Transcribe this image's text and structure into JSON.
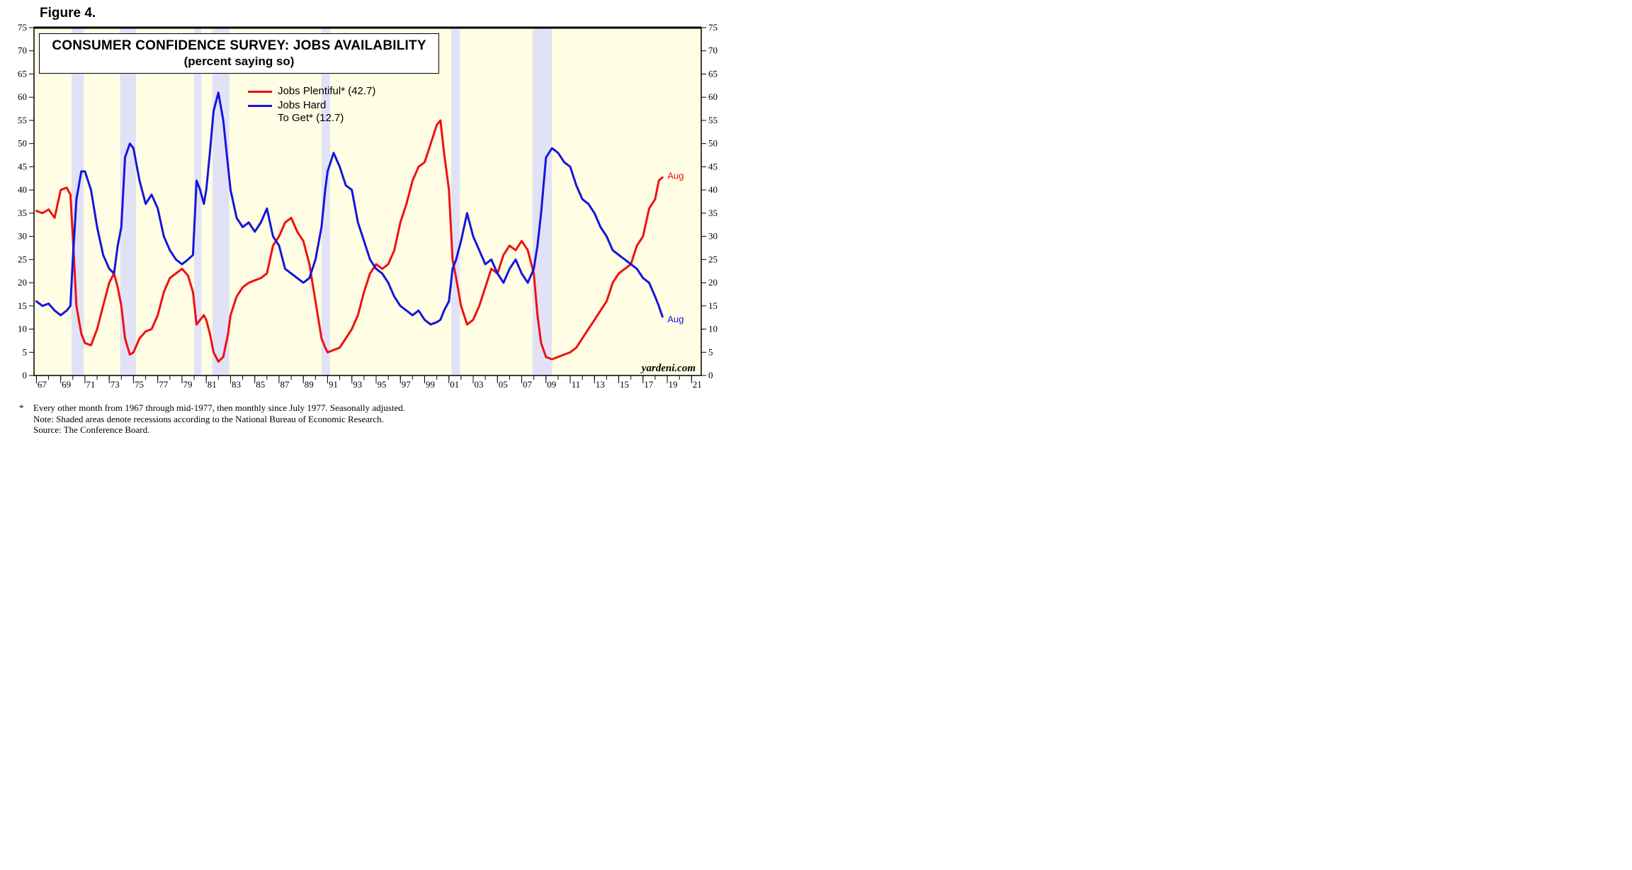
{
  "figure_label": "Figure 4.",
  "colors": {
    "plot_background": "#fffde3",
    "recession_shade": "#e2e2f7",
    "plentiful": "#ee1111",
    "hard_to_get": "#1515dd"
  },
  "footnotes": {
    "mark": "*",
    "line1": "Every other month from 1967 through mid-1977, then monthly since July 1977. Seasonally adjusted.",
    "line2": "Note: Shaded areas denote recessions according to the National Bureau of Economic Research.",
    "line3": "Source: The Conference Board."
  },
  "chart_data": {
    "type": "line",
    "title": "CONSUMER CONFIDENCE SURVEY: JOBS AVAILABILITY",
    "subtitle": "(percent saying so)",
    "credit": "yardeni.com",
    "xlim": [
      1966.8,
      2021.8
    ],
    "ylim": [
      0,
      75
    ],
    "y_ticks": [
      0,
      5,
      10,
      15,
      20,
      25,
      30,
      35,
      40,
      45,
      50,
      55,
      60,
      65,
      70,
      75
    ],
    "x_tick_labels": [
      "67",
      "69",
      "71",
      "73",
      "75",
      "77",
      "79",
      "81",
      "83",
      "85",
      "87",
      "89",
      "91",
      "93",
      "95",
      "97",
      "99",
      "01",
      "03",
      "05",
      "07",
      "09",
      "11",
      "13",
      "15",
      "17",
      "19",
      "21"
    ],
    "x_tick_years": [
      1967,
      1969,
      1971,
      1973,
      1975,
      1977,
      1979,
      1981,
      1983,
      1985,
      1987,
      1989,
      1991,
      1993,
      1995,
      1997,
      1999,
      2001,
      2003,
      2005,
      2007,
      2009,
      2011,
      2013,
      2015,
      2017,
      2019,
      2021
    ],
    "recessions": [
      [
        1969.9,
        1970.9
      ],
      [
        1973.9,
        1975.2
      ],
      [
        1980.0,
        1980.6
      ],
      [
        1981.5,
        1982.9
      ],
      [
        1990.5,
        1991.2
      ],
      [
        2001.2,
        2001.9
      ],
      [
        2007.9,
        2009.5
      ]
    ],
    "legend": [
      {
        "name": "Jobs Plentiful* (42.7)",
        "series": 0
      },
      {
        "name": "Jobs Hard\nTo Get* (12.7)",
        "series": 1
      }
    ],
    "series": [
      {
        "name": "Jobs Plentiful* (42.7)",
        "end_label": "Aug",
        "x": [
          1967.0,
          1967.5,
          1968.0,
          1968.5,
          1969.0,
          1969.5,
          1969.8,
          1970.0,
          1970.3,
          1970.7,
          1971.0,
          1971.5,
          1972.0,
          1972.5,
          1973.0,
          1973.4,
          1973.7,
          1974.0,
          1974.3,
          1974.7,
          1975.0,
          1975.5,
          1976.0,
          1976.5,
          1977.0,
          1977.5,
          1978.0,
          1978.5,
          1979.0,
          1979.5,
          1979.9,
          1980.2,
          1980.5,
          1980.8,
          1981.0,
          1981.3,
          1981.6,
          1982.0,
          1982.4,
          1982.8,
          1983.0,
          1983.5,
          1984.0,
          1984.5,
          1985.0,
          1985.5,
          1986.0,
          1986.5,
          1987.0,
          1987.5,
          1988.0,
          1988.5,
          1989.0,
          1989.5,
          1990.0,
          1990.5,
          1990.8,
          1991.0,
          1991.5,
          1992.0,
          1992.5,
          1993.0,
          1993.5,
          1994.0,
          1994.5,
          1995.0,
          1995.5,
          1996.0,
          1996.5,
          1997.0,
          1997.5,
          1998.0,
          1998.5,
          1999.0,
          1999.5,
          2000.0,
          2000.3,
          2000.6,
          2001.0,
          2001.3,
          2001.6,
          2002.0,
          2002.5,
          2003.0,
          2003.5,
          2004.0,
          2004.5,
          2005.0,
          2005.5,
          2006.0,
          2006.5,
          2007.0,
          2007.5,
          2008.0,
          2008.3,
          2008.6,
          2009.0,
          2009.5,
          2010.0,
          2010.5,
          2011.0,
          2011.5,
          2012.0,
          2012.5,
          2013.0,
          2013.5,
          2014.0,
          2014.5,
          2015.0,
          2015.5,
          2016.0,
          2016.5,
          2017.0,
          2017.5,
          2018.0,
          2018.3,
          2018.6
        ],
        "y": [
          35.5,
          35.0,
          35.8,
          34.0,
          40.0,
          40.5,
          39.0,
          30.0,
          15.0,
          9.0,
          7.0,
          6.5,
          10.0,
          15.0,
          20.0,
          22.0,
          19.0,
          15.0,
          8.0,
          4.5,
          5.0,
          8.0,
          9.5,
          10.0,
          13.0,
          18.0,
          21.0,
          22.0,
          23.0,
          21.5,
          18.0,
          11.0,
          12.0,
          13.0,
          12.0,
          9.0,
          5.0,
          3.0,
          4.0,
          9.0,
          13.0,
          17.0,
          19.0,
          20.0,
          20.5,
          21.0,
          22.0,
          28.0,
          30.0,
          33.0,
          34.0,
          31.0,
          29.0,
          24.0,
          16.0,
          8.0,
          6.0,
          5.0,
          5.5,
          6.0,
          8.0,
          10.0,
          13.0,
          18.0,
          22.0,
          24.0,
          23.0,
          24.0,
          27.0,
          33.0,
          37.0,
          42.0,
          45.0,
          46.0,
          50.0,
          54.0,
          55.0,
          48.0,
          40.0,
          25.0,
          21.0,
          15.0,
          11.0,
          12.0,
          15.0,
          19.0,
          23.0,
          22.0,
          26.0,
          28.0,
          27.0,
          29.0,
          27.0,
          22.0,
          13.0,
          7.0,
          4.0,
          3.5,
          4.0,
          4.5,
          5.0,
          6.0,
          8.0,
          10.0,
          12.0,
          14.0,
          16.0,
          20.0,
          22.0,
          23.0,
          24.0,
          28.0,
          30.0,
          36.0,
          38.0,
          42.0,
          42.7
        ]
      },
      {
        "name": "Jobs Hard To Get* (12.7)",
        "end_label": "Aug",
        "x": [
          1967.0,
          1967.5,
          1968.0,
          1968.5,
          1969.0,
          1969.5,
          1969.8,
          1970.0,
          1970.3,
          1970.7,
          1971.0,
          1971.5,
          1972.0,
          1972.5,
          1973.0,
          1973.4,
          1973.7,
          1974.0,
          1974.3,
          1974.7,
          1975.0,
          1975.5,
          1976.0,
          1976.5,
          1977.0,
          1977.5,
          1978.0,
          1978.5,
          1979.0,
          1979.5,
          1979.9,
          1980.2,
          1980.5,
          1980.8,
          1981.0,
          1981.3,
          1981.6,
          1982.0,
          1982.4,
          1982.8,
          1983.0,
          1983.5,
          1984.0,
          1984.5,
          1985.0,
          1985.5,
          1986.0,
          1986.5,
          1987.0,
          1987.5,
          1988.0,
          1988.5,
          1989.0,
          1989.5,
          1990.0,
          1990.5,
          1990.8,
          1991.0,
          1991.5,
          1992.0,
          1992.5,
          1993.0,
          1993.5,
          1994.0,
          1994.5,
          1995.0,
          1995.5,
          1996.0,
          1996.5,
          1997.0,
          1997.5,
          1998.0,
          1998.5,
          1999.0,
          1999.5,
          2000.0,
          2000.3,
          2000.6,
          2001.0,
          2001.3,
          2001.6,
          2002.0,
          2002.5,
          2003.0,
          2003.5,
          2004.0,
          2004.5,
          2005.0,
          2005.5,
          2006.0,
          2006.5,
          2007.0,
          2007.5,
          2008.0,
          2008.3,
          2008.6,
          2009.0,
          2009.5,
          2010.0,
          2010.5,
          2011.0,
          2011.5,
          2012.0,
          2012.5,
          2013.0,
          2013.5,
          2014.0,
          2014.5,
          2015.0,
          2015.5,
          2016.0,
          2016.5,
          2017.0,
          2017.5,
          2018.0,
          2018.3,
          2018.6
        ],
        "y": [
          16.0,
          15.0,
          15.5,
          14.0,
          13.0,
          14.0,
          15.0,
          25.0,
          38.0,
          44.0,
          44.0,
          40.0,
          32.0,
          26.0,
          23.0,
          22.0,
          28.0,
          32.0,
          47.0,
          50.0,
          49.0,
          42.0,
          37.0,
          39.0,
          36.0,
          30.0,
          27.0,
          25.0,
          24.0,
          25.0,
          26.0,
          42.0,
          40.0,
          37.0,
          40.0,
          48.0,
          57.0,
          61.0,
          55.0,
          45.0,
          40.0,
          34.0,
          32.0,
          33.0,
          31.0,
          33.0,
          36.0,
          30.0,
          28.0,
          23.0,
          22.0,
          21.0,
          20.0,
          21.0,
          25.0,
          32.0,
          40.0,
          44.0,
          48.0,
          45.0,
          41.0,
          40.0,
          33.0,
          29.0,
          25.0,
          23.0,
          22.0,
          20.0,
          17.0,
          15.0,
          14.0,
          13.0,
          14.0,
          12.0,
          11.0,
          11.5,
          12.0,
          14.0,
          16.0,
          23.0,
          25.0,
          29.0,
          35.0,
          30.0,
          27.0,
          24.0,
          25.0,
          22.0,
          20.0,
          23.0,
          25.0,
          22.0,
          20.0,
          23.0,
          28.0,
          35.0,
          47.0,
          49.0,
          48.0,
          46.0,
          45.0,
          41.0,
          38.0,
          37.0,
          35.0,
          32.0,
          30.0,
          27.0,
          26.0,
          25.0,
          24.0,
          23.0,
          21.0,
          20.0,
          17.0,
          15.0,
          12.7
        ]
      }
    ]
  }
}
